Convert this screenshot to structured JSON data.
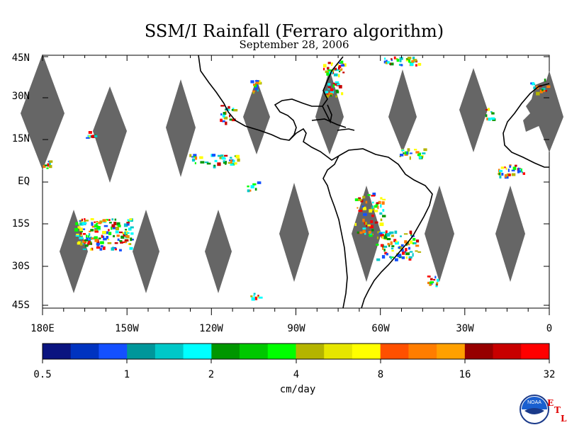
{
  "title": "SSM/I Rainfall (Ferraro algorithm)",
  "date": "September 28, 2006",
  "lat_labels": [
    "45N",
    "30N",
    "15N",
    "EQ",
    "15S",
    "30S",
    "45S"
  ],
  "lon_labels": [
    "180E",
    "150W",
    "120W",
    "90W",
    "60W",
    "30W",
    "0"
  ],
  "colorbar": {
    "colors": [
      "#0a1480",
      "#0033c0",
      "#1450ff",
      "#00969a",
      "#00c8c8",
      "#00ffff",
      "#009600",
      "#00c800",
      "#00ff00",
      "#b4b400",
      "#e6e600",
      "#ffff00",
      "#ff5000",
      "#ff7d00",
      "#ffa000",
      "#960000",
      "#c80000",
      "#ff0000"
    ],
    "tick_labels": [
      "0.5",
      "1",
      "2",
      "4",
      "8",
      "16",
      "32"
    ],
    "units": "cm/day"
  },
  "logo": {
    "text": "NOAA",
    "letters": [
      "E",
      "T",
      "L"
    ]
  }
}
